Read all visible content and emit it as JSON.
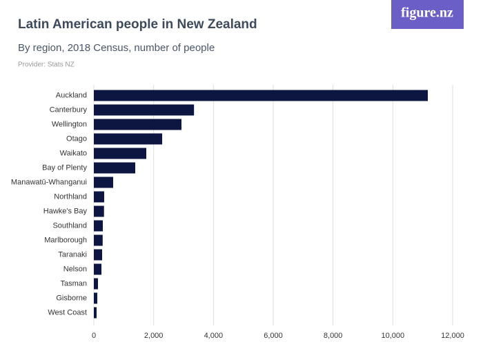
{
  "brand": "figure.nz",
  "chart_data": {
    "type": "bar",
    "orientation": "horizontal",
    "title": "Latin American people in New Zealand",
    "subtitle": "By region, 2018 Census, number of people",
    "provider": "Provider: Stats NZ",
    "categories": [
      "Auckland",
      "Canterbury",
      "Wellington",
      "Otago",
      "Waikato",
      "Bay of Plenty",
      "Manawatū-Whanganui",
      "Northland",
      "Hawke's Bay",
      "Southland",
      "Marlborough",
      "Taranaki",
      "Nelson",
      "Tasman",
      "Gisborne",
      "West Coast"
    ],
    "values": [
      11170,
      3350,
      2930,
      2285,
      1754,
      1385,
      646,
      346,
      340,
      300,
      295,
      277,
      254,
      138,
      115,
      92
    ],
    "color": "#0d1640",
    "xlim": [
      0,
      12000
    ],
    "xticks": [
      0,
      {
        "value": 2000,
        "label": "2,000"
      },
      {
        "value": 4000,
        "label": "4,000"
      },
      {
        "value": 6000,
        "label": "6,000"
      },
      {
        "value": 8000,
        "label": "8,000"
      },
      {
        "value": 10000,
        "label": "10,000"
      },
      {
        "value": 12000,
        "label": "12,000"
      }
    ],
    "grid": true
  }
}
